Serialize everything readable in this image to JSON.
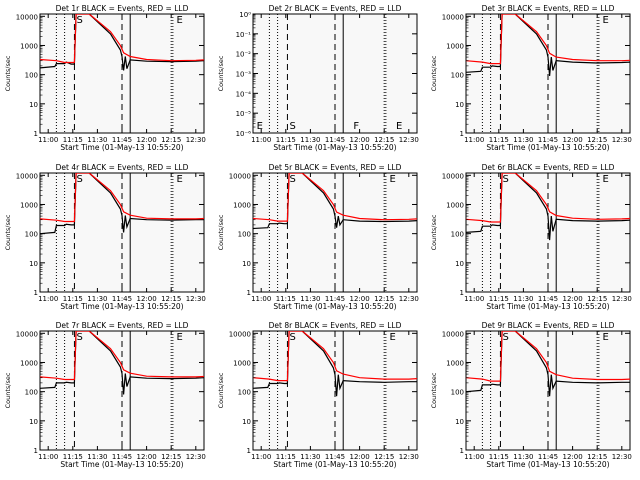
{
  "x_ticks": [
    "11:00",
    "11:15",
    "11:30",
    "11:45",
    "12:00",
    "12:15",
    "12:30"
  ],
  "y_ticks": [
    "1",
    "10",
    "100",
    "1000",
    "10000"
  ],
  "y_ticks_empty": [
    "10⁻⁶",
    "10⁻⁵",
    "10⁻⁴",
    "10⁻³",
    "10⁻²",
    "10⁻¹",
    "10⁰"
  ],
  "colors": {
    "events": "#000000",
    "lld": "#ff0000",
    "background": "#f8f8f8"
  },
  "chart_data": [
    {
      "type": "line",
      "title": "Det 1r BLACK = Events, RED = LLD",
      "xlabel": "Start Time (01-May-13 10:55:20)",
      "ylabel": "Counts/sec",
      "ylog": true,
      "ylim": [
        1,
        12000
      ],
      "xlim": [
        "10:55",
        "12:35"
      ],
      "markers": [
        {
          "x": "11:16",
          "label": "S"
        },
        {
          "x": "12:17",
          "label": "E"
        }
      ],
      "vlines_dotted": [
        "11:05",
        "11:10",
        "12:15",
        "12:16"
      ],
      "vlines_dashed": [
        "11:16",
        "11:45"
      ],
      "vlines_solid": [
        "11:50"
      ],
      "series": [
        {
          "name": "Events",
          "color": "#000000",
          "x": [
            "10:55",
            "11:04",
            "11:05",
            "11:10",
            "11:11",
            "11:14",
            "11:16",
            "11:17",
            "11:25",
            "11:38",
            "11:44",
            "11:45",
            "11:46",
            "11:47",
            "11:48",
            "11:50",
            "12:00",
            "12:15",
            "12:30",
            "12:35"
          ],
          "values": [
            170,
            190,
            240,
            240,
            270,
            230,
            230,
            12000,
            12000,
            2500,
            700,
            420,
            140,
            420,
            160,
            320,
            290,
            280,
            290,
            300
          ]
        },
        {
          "name": "LLD",
          "color": "#ff0000",
          "x": [
            "10:55",
            "11:05",
            "11:10",
            "11:16",
            "11:17",
            "11:25",
            "11:38",
            "11:44",
            "11:46",
            "11:50",
            "12:00",
            "12:15",
            "12:30",
            "12:35"
          ],
          "values": [
            330,
            300,
            260,
            260,
            12000,
            12000,
            3000,
            1000,
            560,
            420,
            330,
            300,
            310,
            320
          ]
        }
      ]
    },
    {
      "type": "line",
      "title": "Det 2r BLACK = Events, RED = LLD",
      "xlabel": "Start Time (01-May-13 10:55:20)",
      "ylabel": "Counts/sec",
      "ylog": true,
      "ylim": [
        1e-06,
        1
      ],
      "xlim": [
        "10:55",
        "12:35"
      ],
      "markers": [
        {
          "x": "10:56",
          "label": "E"
        },
        {
          "x": "11:16",
          "label": "S"
        },
        {
          "x": "11:55",
          "label": "F"
        },
        {
          "x": "12:21",
          "label": "E"
        }
      ],
      "vlines_dotted": [
        "11:05",
        "11:10",
        "12:15",
        "12:16"
      ],
      "vlines_dashed": [
        "11:16",
        "11:45"
      ],
      "vlines_solid": [
        "11:50"
      ],
      "series": []
    },
    {
      "type": "line",
      "title": "Det 3r BLACK = Events, RED = LLD",
      "xlabel": "Start Time (01-May-13 10:55:20)",
      "ylabel": "Counts/sec",
      "ylog": true,
      "ylim": [
        1,
        12000
      ],
      "xlim": [
        "10:55",
        "12:35"
      ],
      "markers": [
        {
          "x": "12:17",
          "label": "E"
        }
      ],
      "vlines_dotted": [
        "11:05",
        "11:10",
        "12:15",
        "12:16"
      ],
      "vlines_dashed": [
        "11:16",
        "11:45"
      ],
      "vlines_solid": [
        "11:50"
      ],
      "series": [
        {
          "name": "Events",
          "color": "#000000",
          "x": [
            "10:55",
            "11:04",
            "11:05",
            "11:10",
            "11:11",
            "11:14",
            "11:16",
            "11:17",
            "11:25",
            "11:38",
            "11:44",
            "11:45",
            "11:46",
            "11:47",
            "11:48",
            "11:50",
            "12:00",
            "12:15",
            "12:30",
            "12:35"
          ],
          "values": [
            120,
            130,
            180,
            180,
            200,
            190,
            190,
            12000,
            12000,
            2500,
            700,
            400,
            90,
            400,
            140,
            300,
            270,
            250,
            260,
            270
          ]
        },
        {
          "name": "LLD",
          "color": "#ff0000",
          "x": [
            "10:55",
            "11:05",
            "11:10",
            "11:16",
            "11:17",
            "11:25",
            "11:38",
            "11:44",
            "11:46",
            "11:50",
            "12:00",
            "12:15",
            "12:30",
            "12:35"
          ],
          "values": [
            300,
            270,
            240,
            240,
            12000,
            12000,
            3000,
            1000,
            540,
            400,
            330,
            300,
            300,
            310
          ]
        }
      ]
    },
    {
      "type": "line",
      "title": "Det 4r BLACK = Events, RED = LLD",
      "xlabel": "Start Time (01-May-13 10:55:20)",
      "ylabel": "Counts/sec",
      "ylog": true,
      "ylim": [
        1,
        12000
      ],
      "xlim": [
        "10:55",
        "12:35"
      ],
      "markers": [
        {
          "x": "11:16",
          "label": "S"
        },
        {
          "x": "12:17",
          "label": "E"
        }
      ],
      "vlines_dotted": [
        "11:05",
        "11:10",
        "12:15",
        "12:16"
      ],
      "vlines_dashed": [
        "11:16",
        "11:45"
      ],
      "vlines_solid": [
        "11:50"
      ],
      "series": [
        {
          "name": "Events",
          "color": "#000000",
          "x": [
            "10:55",
            "11:04",
            "11:05",
            "11:10",
            "11:11",
            "11:14",
            "11:16",
            "11:17",
            "11:25",
            "11:38",
            "11:44",
            "11:45",
            "11:46",
            "11:47",
            "11:48",
            "11:50",
            "12:00",
            "12:15",
            "12:30",
            "12:35"
          ],
          "values": [
            100,
            110,
            190,
            190,
            210,
            200,
            200,
            12000,
            12000,
            2500,
            700,
            420,
            110,
            420,
            170,
            330,
            300,
            290,
            300,
            300
          ]
        },
        {
          "name": "LLD",
          "color": "#ff0000",
          "x": [
            "10:55",
            "11:05",
            "11:10",
            "11:16",
            "11:17",
            "11:25",
            "11:38",
            "11:44",
            "11:46",
            "11:50",
            "12:00",
            "12:15",
            "12:30",
            "12:35"
          ],
          "values": [
            320,
            290,
            260,
            260,
            12000,
            12000,
            3000,
            1000,
            560,
            430,
            340,
            320,
            320,
            330
          ]
        }
      ]
    },
    {
      "type": "line",
      "title": "Det 5r BLACK = Events, RED = LLD",
      "xlabel": "Start Time (01-May-13 10:55:20)",
      "ylabel": "Counts/sec",
      "ylog": true,
      "ylim": [
        1,
        12000
      ],
      "xlim": [
        "10:55",
        "12:35"
      ],
      "markers": [
        {
          "x": "11:16",
          "label": "S"
        },
        {
          "x": "12:17",
          "label": "E"
        }
      ],
      "vlines_dotted": [
        "11:05",
        "11:10",
        "12:15",
        "12:16"
      ],
      "vlines_dashed": [
        "11:16",
        "11:45"
      ],
      "vlines_solid": [
        "11:50"
      ],
      "series": [
        {
          "name": "Events",
          "color": "#000000",
          "x": [
            "10:55",
            "11:04",
            "11:05",
            "11:10",
            "11:11",
            "11:14",
            "11:16",
            "11:17",
            "11:25",
            "11:38",
            "11:44",
            "11:45",
            "11:46",
            "11:47",
            "11:48",
            "11:50",
            "12:00",
            "12:15",
            "12:30",
            "12:35"
          ],
          "values": [
            150,
            160,
            220,
            220,
            230,
            220,
            220,
            12000,
            12000,
            2500,
            700,
            400,
            160,
            400,
            200,
            300,
            270,
            260,
            270,
            280
          ]
        },
        {
          "name": "LLD",
          "color": "#ff0000",
          "x": [
            "10:55",
            "11:05",
            "11:10",
            "11:16",
            "11:17",
            "11:25",
            "11:38",
            "11:44",
            "11:46",
            "11:50",
            "12:00",
            "12:15",
            "12:30",
            "12:35"
          ],
          "values": [
            330,
            300,
            270,
            270,
            12000,
            12000,
            3000,
            1000,
            550,
            430,
            330,
            300,
            310,
            320
          ]
        }
      ]
    },
    {
      "type": "line",
      "title": "Det 6r BLACK = Events, RED = LLD",
      "xlabel": "Start Time (01-May-13 10:55:20)",
      "ylabel": "Counts/sec",
      "ylog": true,
      "ylim": [
        1,
        12000
      ],
      "xlim": [
        "10:55",
        "12:35"
      ],
      "markers": [
        {
          "x": "11:16",
          "label": "S"
        },
        {
          "x": "12:17",
          "label": "E"
        }
      ],
      "vlines_dotted": [
        "11:05",
        "11:10",
        "12:15",
        "12:16"
      ],
      "vlines_dashed": [
        "11:16",
        "11:45"
      ],
      "vlines_solid": [
        "11:50"
      ],
      "series": [
        {
          "name": "Events",
          "color": "#000000",
          "x": [
            "10:55",
            "11:04",
            "11:05",
            "11:10",
            "11:11",
            "11:14",
            "11:16",
            "11:17",
            "11:25",
            "11:38",
            "11:44",
            "11:45",
            "11:46",
            "11:47",
            "11:48",
            "11:50",
            "12:00",
            "12:15",
            "12:30",
            "12:35"
          ],
          "values": [
            110,
            120,
            180,
            180,
            200,
            190,
            190,
            12000,
            12000,
            2500,
            700,
            400,
            60,
            400,
            120,
            310,
            280,
            270,
            280,
            290
          ]
        },
        {
          "name": "LLD",
          "color": "#ff0000",
          "x": [
            "10:55",
            "11:05",
            "11:10",
            "11:16",
            "11:17",
            "11:25",
            "11:38",
            "11:44",
            "11:46",
            "11:50",
            "12:00",
            "12:15",
            "12:30",
            "12:35"
          ],
          "values": [
            310,
            280,
            250,
            250,
            12000,
            12000,
            3000,
            1000,
            560,
            420,
            340,
            310,
            320,
            330
          ]
        }
      ]
    },
    {
      "type": "line",
      "title": "Det 7r BLACK = Events, RED = LLD",
      "xlabel": "Start Time (01-May-13 10:55:20)",
      "ylabel": "Counts/sec",
      "ylog": true,
      "ylim": [
        1,
        12000
      ],
      "xlim": [
        "10:55",
        "12:35"
      ],
      "markers": [
        {
          "x": "11:16",
          "label": "S"
        },
        {
          "x": "12:17",
          "label": "E"
        }
      ],
      "vlines_dotted": [
        "11:05",
        "11:10",
        "12:15",
        "12:16"
      ],
      "vlines_dashed": [
        "11:16",
        "11:45"
      ],
      "vlines_solid": [
        "11:50"
      ],
      "series": [
        {
          "name": "Events",
          "color": "#000000",
          "x": [
            "10:55",
            "11:04",
            "11:05",
            "11:10",
            "11:11",
            "11:14",
            "11:16",
            "11:17",
            "11:25",
            "11:38",
            "11:44",
            "11:45",
            "11:46",
            "11:47",
            "11:48",
            "11:50",
            "12:00",
            "12:15",
            "12:30",
            "12:35"
          ],
          "values": [
            130,
            140,
            200,
            200,
            210,
            200,
            200,
            12000,
            12000,
            2500,
            700,
            420,
            80,
            420,
            150,
            320,
            290,
            280,
            290,
            300
          ]
        },
        {
          "name": "LLD",
          "color": "#ff0000",
          "x": [
            "10:55",
            "11:05",
            "11:10",
            "11:16",
            "11:17",
            "11:25",
            "11:38",
            "11:44",
            "11:46",
            "11:50",
            "12:00",
            "12:15",
            "12:30",
            "12:35"
          ],
          "values": [
            320,
            290,
            260,
            260,
            12000,
            12000,
            3000,
            1000,
            560,
            430,
            340,
            320,
            320,
            330
          ]
        }
      ]
    },
    {
      "type": "line",
      "title": "Det 8r BLACK = Events, RED = LLD",
      "xlabel": "Start Time (01-May-13 10:55:20)",
      "ylabel": "Counts/sec",
      "ylog": true,
      "ylim": [
        1,
        12000
      ],
      "xlim": [
        "10:55",
        "12:35"
      ],
      "markers": [
        {
          "x": "11:16",
          "label": "S"
        },
        {
          "x": "12:17",
          "label": "E"
        }
      ],
      "vlines_dotted": [
        "11:05",
        "11:10",
        "12:15",
        "12:16"
      ],
      "vlines_dashed": [
        "11:16",
        "11:45"
      ],
      "vlines_solid": [
        "11:50"
      ],
      "series": [
        {
          "name": "Events",
          "color": "#000000",
          "x": [
            "10:55",
            "11:04",
            "11:05",
            "11:10",
            "11:11",
            "11:14",
            "11:16",
            "11:17",
            "11:25",
            "11:38",
            "11:44",
            "11:45",
            "11:46",
            "11:47",
            "11:48",
            "11:50",
            "12:00",
            "12:15",
            "12:30",
            "12:35"
          ],
          "values": [
            130,
            140,
            190,
            190,
            200,
            190,
            190,
            12000,
            12000,
            2500,
            650,
            380,
            70,
            380,
            130,
            240,
            220,
            210,
            220,
            220
          ]
        },
        {
          "name": "LLD",
          "color": "#ff0000",
          "x": [
            "10:55",
            "11:05",
            "11:10",
            "11:16",
            "11:17",
            "11:25",
            "11:38",
            "11:44",
            "11:46",
            "11:50",
            "12:00",
            "12:15",
            "12:30",
            "12:35"
          ],
          "values": [
            300,
            270,
            240,
            240,
            12000,
            12000,
            3000,
            1000,
            520,
            400,
            300,
            270,
            270,
            280
          ]
        }
      ]
    },
    {
      "type": "line",
      "title": "Det 9r BLACK = Events, RED = LLD",
      "xlabel": "Start Time (01-May-13 10:55:20)",
      "ylabel": "Counts/sec",
      "ylog": true,
      "ylim": [
        1,
        12000
      ],
      "xlim": [
        "10:55",
        "12:35"
      ],
      "markers": [
        {
          "x": "11:16",
          "label": "S"
        },
        {
          "x": "12:17",
          "label": "E"
        }
      ],
      "vlines_dotted": [
        "11:05",
        "11:10",
        "12:15",
        "12:16"
      ],
      "vlines_dashed": [
        "11:16",
        "11:45"
      ],
      "vlines_solid": [
        "11:50"
      ],
      "series": [
        {
          "name": "Events",
          "color": "#000000",
          "x": [
            "10:55",
            "11:04",
            "11:05",
            "11:10",
            "11:11",
            "11:14",
            "11:16",
            "11:17",
            "11:25",
            "11:38",
            "11:44",
            "11:45",
            "11:46",
            "11:47",
            "11:48",
            "11:50",
            "12:00",
            "12:15",
            "12:30",
            "12:35"
          ],
          "values": [
            100,
            110,
            170,
            170,
            180,
            170,
            170,
            12000,
            12000,
            2500,
            650,
            380,
            70,
            380,
            130,
            230,
            210,
            200,
            210,
            210
          ]
        },
        {
          "name": "LLD",
          "color": "#ff0000",
          "x": [
            "10:55",
            "11:05",
            "11:10",
            "11:16",
            "11:17",
            "11:25",
            "11:38",
            "11:44",
            "11:46",
            "11:50",
            "12:00",
            "12:15",
            "12:30",
            "12:35"
          ],
          "values": [
            300,
            270,
            230,
            230,
            12000,
            12000,
            3000,
            1000,
            500,
            380,
            290,
            260,
            260,
            270
          ]
        }
      ]
    }
  ]
}
